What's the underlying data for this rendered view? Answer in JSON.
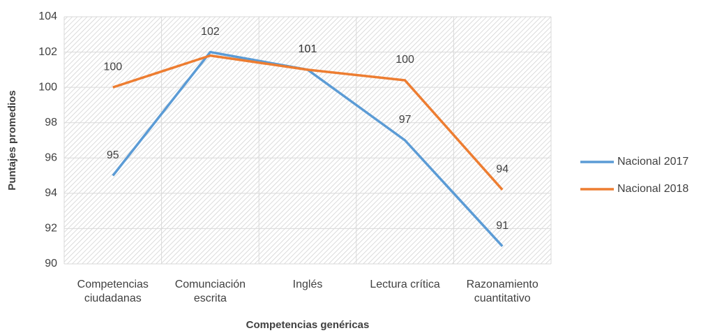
{
  "chart_data": {
    "type": "line",
    "x_label": "Competencias genéricas",
    "y_label": "Puntajes promedios",
    "categories": [
      "Competencias ciudadanas",
      "Comunciación escrita",
      "Inglés",
      "Lectura crítica",
      "Razonamiento cuantitativo"
    ],
    "series": [
      {
        "name": "Nacional 2017",
        "color": "#5b9bd5",
        "values": [
          95,
          102,
          101,
          97,
          91
        ]
      },
      {
        "name": "Nacional 2018",
        "color": "#ed7d31",
        "values": [
          100,
          101.8,
          101,
          100.4,
          94.2
        ],
        "value_labels": [
          "100",
          null,
          "101",
          "100",
          "94"
        ]
      }
    ],
    "ylim": [
      90,
      104
    ],
    "yticks": [
      90,
      92,
      94,
      96,
      98,
      100,
      102,
      104
    ],
    "grid": true,
    "legend": "right"
  }
}
